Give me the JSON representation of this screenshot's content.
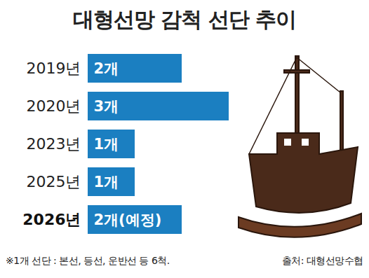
{
  "chart_data": {
    "type": "bar",
    "title": "대형선망 감척 선단 추이",
    "orientation": "horizontal",
    "categories": [
      "2019년",
      "2020년",
      "2023년",
      "2025년",
      "2026년"
    ],
    "values": [
      2,
      3,
      1,
      1,
      2
    ],
    "value_labels": [
      "2개",
      "3개",
      "1개",
      "1개",
      "2개(예정)"
    ],
    "data_labels": true,
    "tick_labels": "y",
    "color": "#1b7fc1",
    "xlim": [
      0,
      3
    ],
    "note": "※1개 선단 : 본선, 등선, 운반선 등 6척.",
    "source": "출처: 대형선망수협"
  }
}
